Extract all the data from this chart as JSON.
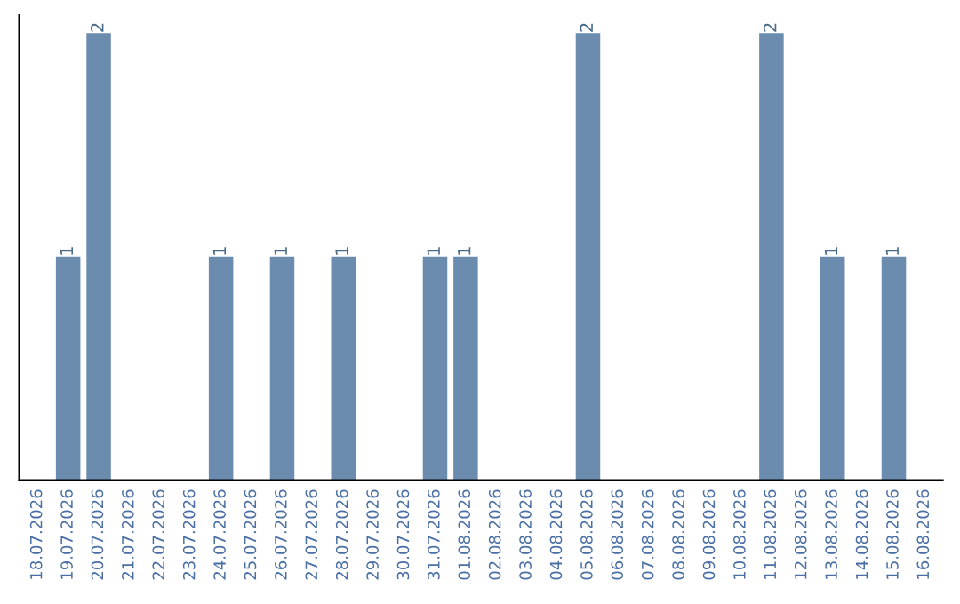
{
  "chart_data": {
    "type": "bar",
    "categories": [
      "18.07.2026",
      "19.07.2026",
      "20.07.2026",
      "21.07.2026",
      "22.07.2026",
      "23.07.2026",
      "24.07.2026",
      "25.07.2026",
      "26.07.2026",
      "27.07.2026",
      "28.07.2026",
      "29.07.2026",
      "30.07.2026",
      "31.07.2026",
      "01.08.2026",
      "02.08.2026",
      "03.08.2026",
      "04.08.2026",
      "05.08.2026",
      "06.08.2026",
      "07.08.2026",
      "08.08.2026",
      "09.08.2026",
      "10.08.2026",
      "11.08.2026",
      "12.08.2026",
      "13.08.2026",
      "14.08.2026",
      "15.08.2026",
      "16.08.2026"
    ],
    "values": [
      0,
      1,
      2,
      0,
      0,
      0,
      1,
      0,
      1,
      0,
      1,
      0,
      0,
      1,
      1,
      0,
      0,
      0,
      2,
      0,
      0,
      0,
      0,
      0,
      2,
      0,
      1,
      0,
      1,
      0
    ],
    "color": "#6b8cae",
    "ylim": [
      0,
      2.08
    ],
    "tick_labels": "x",
    "value_labels": [
      null,
      "1",
      "2",
      null,
      null,
      null,
      "1",
      null,
      "1",
      null,
      "1",
      null,
      null,
      "1",
      "1",
      null,
      null,
      null,
      "2",
      null,
      null,
      null,
      null,
      null,
      "2",
      null,
      "1",
      null,
      "1",
      null
    ],
    "grid": false,
    "legend": false
  }
}
